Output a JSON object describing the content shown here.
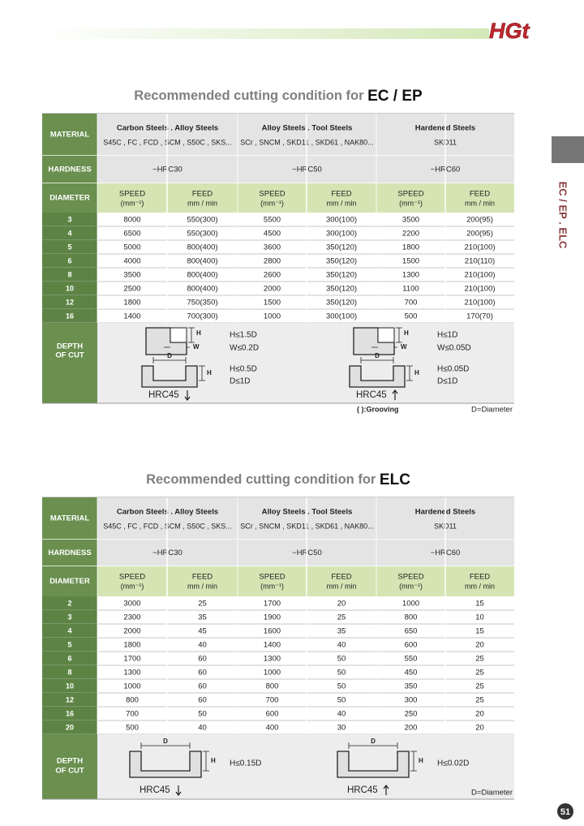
{
  "header": {
    "logo": "HGt"
  },
  "side_tab": "EC / EP . ELC",
  "page_number": "51",
  "sections": [
    {
      "title_prefix": "Recommended cutting condition for",
      "title_emph": "EC / EP",
      "labels": {
        "material": "MATERIAL",
        "hardness": "HARDNESS",
        "diameter": "DIAMETER",
        "depth": [
          "DEPTH",
          "OF CUT"
        ],
        "speed": "SPEED",
        "speed_unit": "(mm⁻¹)",
        "feed": "FEED",
        "feed_unit": "mm / min"
      },
      "materials": [
        {
          "name": "Carbon Steels . Alloy Steels",
          "grades": "S45C , FC , FCD , SCM , S50C , SKS...",
          "hardness": "~HRC30"
        },
        {
          "name": "Alloy Steels . Tool Steels",
          "grades": "SCr , SNCM , SKD11 , SKD61 , NAK80...",
          "hardness": "~HRC50"
        },
        {
          "name": "Hardened Steels",
          "grades": "SKD11",
          "hardness": "~HRC60"
        }
      ],
      "rows": [
        {
          "diameter": 3,
          "cells": [
            "8000",
            "550(300)",
            "5500",
            "300(100)",
            "3500",
            "200(95)"
          ]
        },
        {
          "diameter": 4,
          "cells": [
            "6500",
            "550(300)",
            "4500",
            "300(100)",
            "2200",
            "200(95)"
          ]
        },
        {
          "diameter": 5,
          "cells": [
            "5000",
            "800(400)",
            "3600",
            "350(120)",
            "1800",
            "210(100)"
          ]
        },
        {
          "diameter": 6,
          "cells": [
            "4000",
            "800(400)",
            "2800",
            "350(120)",
            "1500",
            "210(110)"
          ]
        },
        {
          "diameter": 8,
          "cells": [
            "3500",
            "800(400)",
            "2600",
            "350(120)",
            "1300",
            "210(100)"
          ]
        },
        {
          "diameter": 10,
          "cells": [
            "2500",
            "800(400)",
            "2000",
            "350(120)",
            "1100",
            "210(100)"
          ]
        },
        {
          "diameter": 12,
          "cells": [
            "1800",
            "750(350)",
            "1500",
            "350(120)",
            "700",
            "210(100)"
          ]
        },
        {
          "diameter": 16,
          "cells": [
            "1400",
            "700(300)",
            "1000",
            "300(100)",
            "500",
            "170(70)"
          ]
        }
      ],
      "diagram_letters": {
        "height": "H",
        "width": "W",
        "diameter": "D"
      },
      "diagrams": [
        {
          "specs": [
            "H≤1.5D",
            "W≤0.2D",
            "H≤0.5D",
            "D≤1D"
          ],
          "hrc": "HRC45"
        },
        {
          "specs": [
            "H≤1D",
            "W≤0.05D",
            "H≤0.05D",
            "D≤1D"
          ],
          "hrc": "HRC45"
        }
      ],
      "notes": [
        "( ):Grooving",
        "D=Diameter"
      ]
    },
    {
      "title_prefix": "Recommended cutting condition for",
      "title_emph": "ELC",
      "labels": {
        "material": "MATERIAL",
        "hardness": "HARDNESS",
        "diameter": "DIAMETER",
        "depth": [
          "DEPTH",
          "OF CUT"
        ],
        "speed": "SPEED",
        "speed_unit": "(mm⁻¹)",
        "feed": "FEED",
        "feed_unit": "mm / min"
      },
      "materials": [
        {
          "name": "Carbon Steels . Alloy Steels",
          "grades": "S45C , FC , FCD , SCM , S50C , SKS...",
          "hardness": "~HRC30"
        },
        {
          "name": "Alloy  Steels . Tool Steels",
          "grades": "SCr , SNCM , SKD11 , SKD61 , NAK80...",
          "hardness": "~HRC50"
        },
        {
          "name": "Hardened Steels",
          "grades": "SKD11",
          "hardness": "~HRC60"
        }
      ],
      "rows": [
        {
          "diameter": 2,
          "cells": [
            3000,
            25,
            1700,
            20,
            1000,
            15
          ]
        },
        {
          "diameter": 3,
          "cells": [
            2300,
            35,
            1900,
            25,
            800,
            10
          ]
        },
        {
          "diameter": 4,
          "cells": [
            2000,
            45,
            1600,
            35,
            650,
            15
          ]
        },
        {
          "diameter": 5,
          "cells": [
            1800,
            40,
            1400,
            40,
            600,
            20
          ]
        },
        {
          "diameter": 6,
          "cells": [
            1700,
            60,
            1300,
            50,
            550,
            25
          ]
        },
        {
          "diameter": 8,
          "cells": [
            1300,
            60,
            1000,
            50,
            450,
            25
          ]
        },
        {
          "diameter": 10,
          "cells": [
            1000,
            60,
            800,
            50,
            350,
            25
          ]
        },
        {
          "diameter": 12,
          "cells": [
            800,
            60,
            700,
            50,
            300,
            25
          ]
        },
        {
          "diameter": 16,
          "cells": [
            700,
            50,
            600,
            40,
            250,
            20
          ]
        },
        {
          "diameter": 20,
          "cells": [
            500,
            40,
            400,
            30,
            200,
            20
          ]
        }
      ],
      "diagram_letters": {
        "height": "H",
        "diameter": "D"
      },
      "diagrams": [
        {
          "specs": [
            "H≤0.15D"
          ],
          "hrc": "HRC45"
        },
        {
          "specs": [
            "H≤0.02D"
          ],
          "hrc": "HRC45"
        }
      ],
      "notes": [
        "D=Diameter"
      ]
    }
  ]
}
